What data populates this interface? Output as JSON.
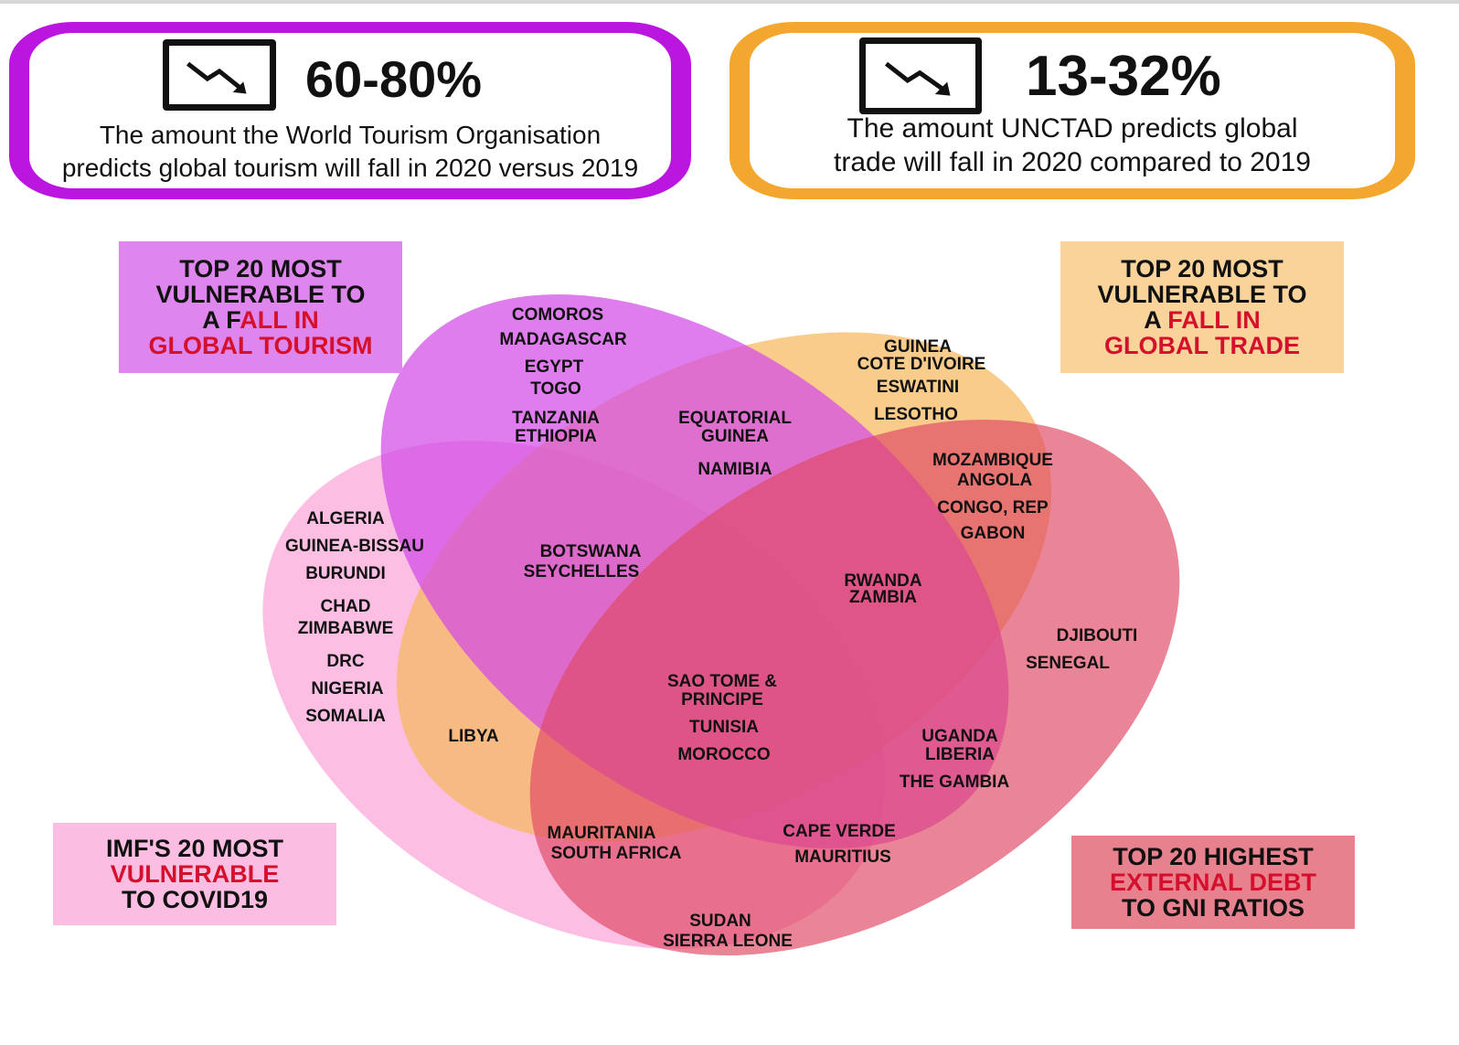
{
  "stats": [
    {
      "id": "tourism",
      "value": "60-80%",
      "desc_lines": [
        "The amount the World Tourism Organisation",
        "predicts global tourism will fall in 2020 versus 2019"
      ],
      "border_color": "#bb16e0"
    },
    {
      "id": "trade",
      "value": "13-32%",
      "desc_lines": [
        "The amount UNCTAD predicts global",
        "trade will fall in 2020 compared to 2019"
      ],
      "border_color": "#f3a72f"
    }
  ],
  "legend": {
    "tourism": {
      "line1": "TOP 20 MOST",
      "line2": "VULNERABLE TO",
      "line3_a": "A F",
      "line3_b": "ALL IN",
      "line4": "GLOBAL TOURISM",
      "color": "#de86ee"
    },
    "trade": {
      "line1": "TOP 20 MOST",
      "line2": "VULNERABLE TO",
      "line3_a": "A ",
      "line3_b": "FALL IN",
      "line4": "GLOBAL TRADE",
      "color": "#f9d39a"
    },
    "covid": {
      "line1": "IMF'S 20 MOST",
      "line2": "VULNERABLE",
      "line3": "TO COVID19",
      "color": "#fcbde2"
    },
    "debt": {
      "line1": "TOP 20 HIGHEST",
      "line2": "EXTERNAL DEBT",
      "line3": "TO GNI RATIOS",
      "color": "#e8818e"
    }
  },
  "venn_colors": {
    "tourism": "#d24be8",
    "trade": "#f6b85e",
    "covid": "#fba5d8",
    "debt": "#e04a66"
  },
  "countries": {
    "comoros": "COMOROS",
    "madagascar": "MADAGASCAR",
    "egypt": "EGYPT",
    "togo": "TOGO",
    "tanzania": "TANZANIA",
    "ethiopia": "ETHIOPIA",
    "equatorial_1": "EQUATORIAL",
    "equatorial_2": "GUINEA",
    "namibia": "NAMIBIA",
    "guinea": "GUINEA",
    "cote_divoire": "COTE D'IVOIRE",
    "eswatini": "ESWATINI",
    "lesotho": "LESOTHO",
    "mozambique": "MOZAMBIQUE",
    "angola": "ANGOLA",
    "congo_rep": "CONGO, REP",
    "gabon": "GABON",
    "algeria": "ALGERIA",
    "guinea_bissau": "GUINEA-BISSAU",
    "burundi": "BURUNDI",
    "chad": "CHAD",
    "zimbabwe": "ZIMBABWE",
    "drc": "DRC",
    "nigeria": "NIGERIA",
    "somalia": "SOMALIA",
    "botswana": "BOTSWANA",
    "seychelles": "SEYCHELLES",
    "rwanda": "RWANDA",
    "zambia": "ZAMBIA",
    "djibouti": "DJIBOUTI",
    "senegal": "SENEGAL",
    "libya": "LIBYA",
    "sao_tome_1": "SAO TOME &",
    "sao_tome_2": "PRINCIPE",
    "tunisia": "TUNISIA",
    "morocco": "MOROCCO",
    "uganda": "UGANDA",
    "liberia": "LIBERIA",
    "the_gambia": "THE GAMBIA",
    "mauritania": "MAURITANIA",
    "south_africa": "SOUTH AFRICA",
    "cape_verde": "CAPE VERDE",
    "mauritius": "MAURITIUS",
    "sudan": "SUDAN",
    "sierra_leone": "SIERRA LEONE"
  }
}
